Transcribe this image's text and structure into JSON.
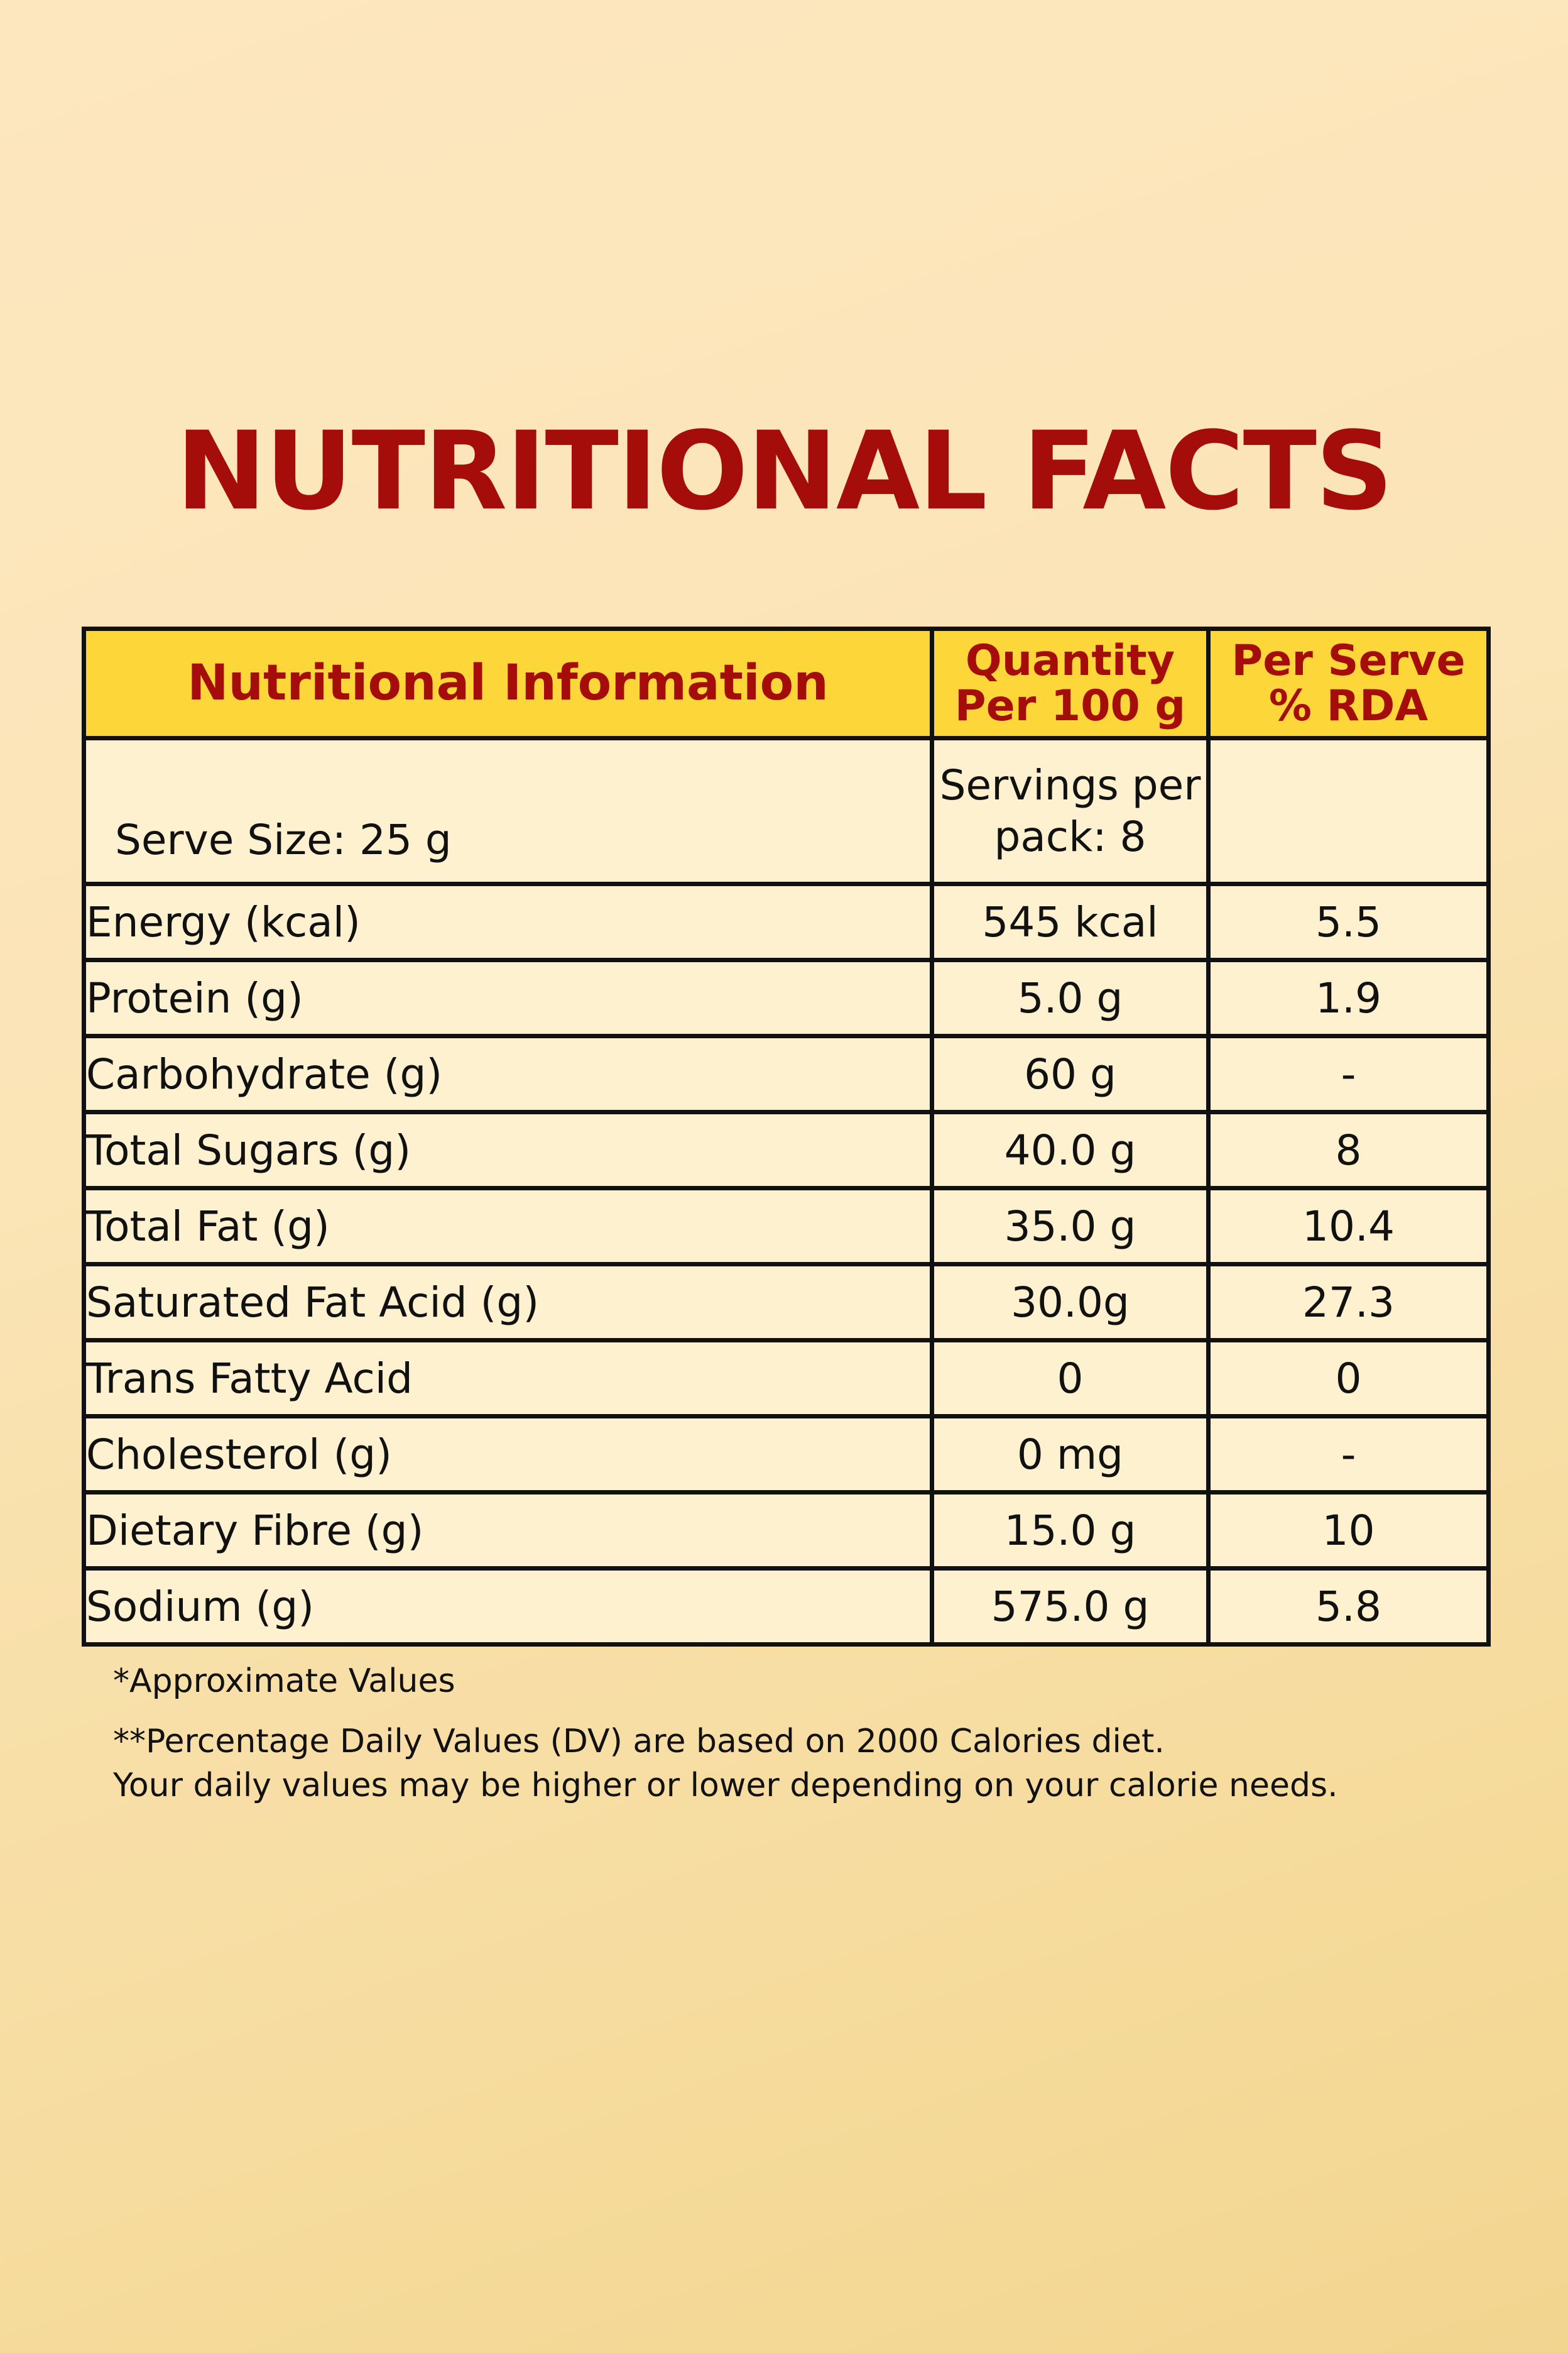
{
  "title": "NUTRITIONAL FACTS",
  "table": {
    "headers": {
      "col1": "Nutritional Information",
      "col2_line1": "Quantity",
      "col2_line2": "Per 100 g",
      "col3_line1": "Per Serve",
      "col3_line2": "% RDA"
    },
    "serve_row": {
      "serve_size": "Serve Size: 25 g",
      "servings_line1": "Servings per",
      "servings_line2": "pack: 8",
      "rda": ""
    },
    "rows": [
      {
        "label": "Energy (kcal)",
        "qty": "545 kcal",
        "rda": "5.5"
      },
      {
        "label": "Protein (g)",
        "qty": "5.0 g",
        "rda": "1.9"
      },
      {
        "label": "Carbohydrate (g)",
        "qty": "60 g",
        "rda": "-"
      },
      {
        "label": "Total Sugars (g)",
        "qty": "40.0 g",
        "rda": "8"
      },
      {
        "label": "Total Fat (g)",
        "qty": "35.0 g",
        "rda": "10.4"
      },
      {
        "label": "Saturated Fat Acid (g)",
        "qty": "30.0g",
        "rda": "27.3"
      },
      {
        "label": "Trans Fatty Acid",
        "qty": "0",
        "rda": "0"
      },
      {
        "label": "Cholesterol (g)",
        "qty": "0 mg",
        "rda": "-"
      },
      {
        "label": "Dietary Fibre (g)",
        "qty": "15.0 g",
        "rda": "10"
      },
      {
        "label": "Sodium (g)",
        "qty": "575.0 g",
        "rda": "5.8"
      }
    ]
  },
  "notes": {
    "approx": "*Approximate Values",
    "dv_line1": "**Percentage Daily Values (DV) are based on 2000 Calories diet.",
    "dv_line2": "Your daily values may be higher or lower depending on your calorie needs."
  },
  "colors": {
    "title": "#a50d0a",
    "header_bg": "#fdd63a",
    "header_text": "#a50d0a",
    "cell_bg": "#fdf1cf",
    "border": "#111111"
  }
}
